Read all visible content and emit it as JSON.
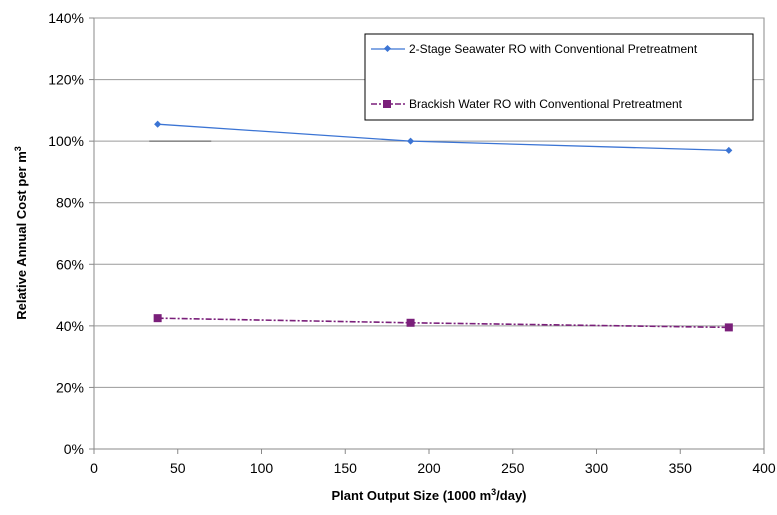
{
  "chart_data": {
    "type": "line",
    "title": "",
    "xlabel": {
      "main": "Plant Output Size (1000 m",
      "sup": "3",
      "rest": "/day)"
    },
    "ylabel": {
      "main": "Relative Annual Cost per m",
      "sup": "3"
    },
    "xlim": [
      0,
      400
    ],
    "ylim": [
      0,
      140
    ],
    "x_ticks": [
      0,
      50,
      100,
      150,
      200,
      250,
      300,
      350,
      400
    ],
    "y_ticks": [
      0,
      20,
      40,
      60,
      80,
      100,
      120,
      140
    ],
    "x_tick_labels": [
      "0",
      "50",
      "100",
      "150",
      "200",
      "250",
      "300",
      "350",
      "400"
    ],
    "y_tick_labels": [
      "0%",
      "20%",
      "40%",
      "60%",
      "80%",
      "100%",
      "120%",
      "140%"
    ],
    "grid": "horizontal",
    "legend_position": "top-right",
    "series": [
      {
        "name": "2-Stage Seawater RO with Conventional Pretreatment",
        "color": "#3b74d4",
        "marker": "diamond",
        "line_style": "solid",
        "x": [
          38,
          189,
          379
        ],
        "y": [
          105.5,
          100,
          97
        ]
      },
      {
        "name": "Brackish Water RO with Conventional Pretreatment",
        "color": "#7a1f7a",
        "marker": "square",
        "line_style": "dash-dot",
        "x": [
          38,
          189,
          379
        ],
        "y": [
          42.5,
          41,
          39.5
        ]
      }
    ]
  }
}
